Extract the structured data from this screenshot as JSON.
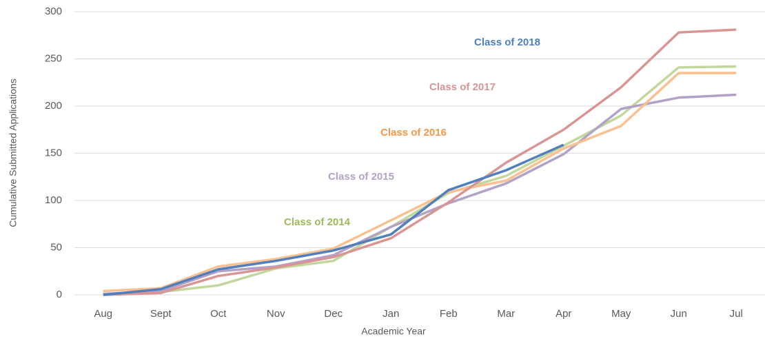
{
  "chart_data": {
    "type": "line",
    "x_label": "Academic Year",
    "y_label": "Cumulative Submitted Applications",
    "categories": [
      "Aug",
      "Sept",
      "Oct",
      "Nov",
      "Dec",
      "Jan",
      "Feb",
      "Mar",
      "Apr",
      "May",
      "Jun",
      "Jul"
    ],
    "series": [
      {
        "name": "Class of 2014",
        "color": "#c3d69b",
        "label_color": "#9bbb59",
        "values": [
          1,
          3,
          10,
          28,
          36,
          72,
          108,
          126,
          158,
          190,
          241,
          242
        ]
      },
      {
        "name": "Class of 2015",
        "color": "#b3a2c7",
        "label_color": "#b3a2c7",
        "values": [
          1,
          4,
          25,
          30,
          42,
          72,
          97,
          118,
          149,
          197,
          209,
          212
        ]
      },
      {
        "name": "Class of 2016",
        "color": "#fac090",
        "label_color": "#f79646",
        "values": [
          4,
          7,
          30,
          38,
          49,
          79,
          109,
          121,
          155,
          179,
          235,
          235
        ]
      },
      {
        "name": "Class of 2017",
        "color": "#d99594",
        "label_color": "#d99594",
        "values": [
          0,
          2,
          20,
          29,
          40,
          60,
          98,
          140,
          175,
          220,
          278,
          281
        ]
      },
      {
        "name": "Class of 2018",
        "color": "#4f7fbd",
        "label_color": "#4f7fbd",
        "values": [
          0,
          6,
          27,
          36,
          47,
          64,
          111,
          132,
          159,
          null,
          null,
          null
        ]
      }
    ],
    "ylim": [
      0,
      300
    ],
    "yticks": [
      0,
      50,
      100,
      150,
      200,
      250,
      300
    ],
    "grid": true
  }
}
